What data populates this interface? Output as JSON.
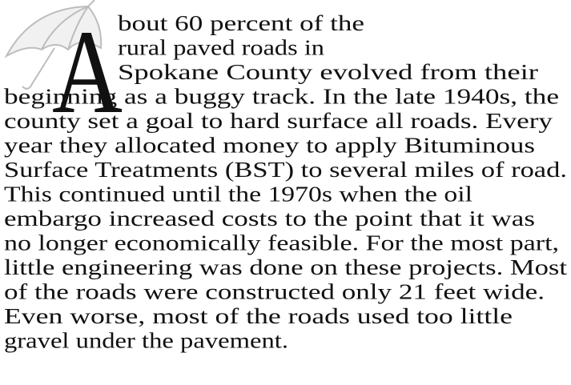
{
  "dropcap": "A",
  "lines": [
    "bout 60 percent of the",
    "rural paved roads in",
    "Spokane County evolved from their",
    "beginning as a buggy track. In the late 1940s, the",
    "county set a goal to hard surface all roads. Every",
    "year they allocated money to apply Bituminous",
    "Surface Treatments (BST) to several miles of road.",
    "This continued until the 1970s when the oil",
    "embargo increased costs to the point that it was",
    "no longer economically feasible. For the most part,",
    "little engineering was done on these projects. Most",
    "of the roads were constructed only 21 feet wide.",
    "Even worse, most of the roads used too little",
    "gravel under the pavement."
  ]
}
